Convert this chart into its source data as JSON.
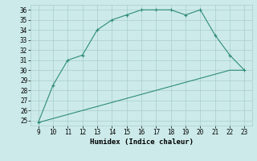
{
  "x": [
    9,
    10,
    11,
    12,
    13,
    14,
    15,
    16,
    17,
    18,
    19,
    20,
    21,
    22,
    23
  ],
  "y_main": [
    24.8,
    28.5,
    31.0,
    31.5,
    34.0,
    35.0,
    35.5,
    36.0,
    36.0,
    36.0,
    35.5,
    36.0,
    33.5,
    31.5,
    30.0
  ],
  "y_line": [
    24.8,
    25.2,
    25.6,
    26.0,
    26.4,
    26.8,
    27.2,
    27.6,
    28.0,
    28.4,
    28.8,
    29.2,
    29.6,
    30.0,
    30.0
  ],
  "color": "#2e8b7a",
  "bg_color": "#cceaea",
  "grid_color": "#aacccc",
  "xlabel": "Humidex (Indice chaleur)",
  "ylim": [
    24.5,
    36.5
  ],
  "xlim": [
    8.5,
    23.5
  ],
  "yticks": [
    25,
    26,
    27,
    28,
    29,
    30,
    31,
    32,
    33,
    34,
    35,
    36
  ],
  "xticks": [
    9,
    10,
    11,
    12,
    13,
    14,
    15,
    16,
    17,
    18,
    19,
    20,
    21,
    22,
    23
  ],
  "tick_fontsize": 5.5,
  "xlabel_fontsize": 6.5
}
